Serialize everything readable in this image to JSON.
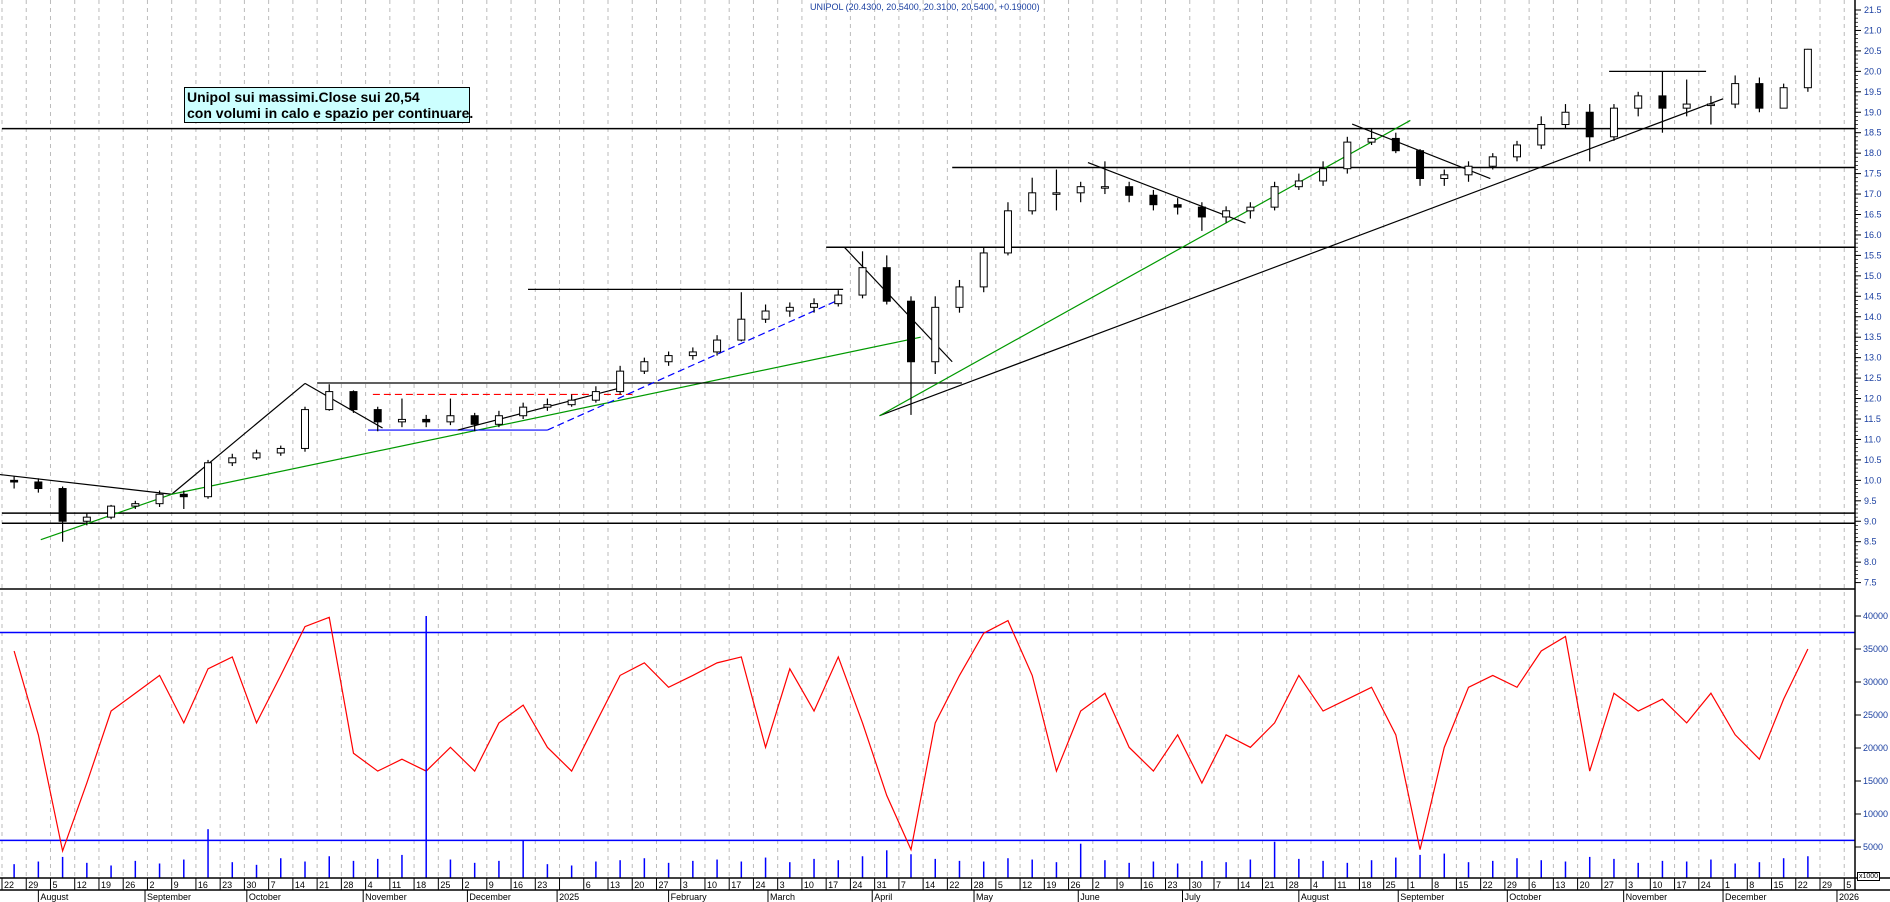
{
  "title": "UNIPOL (20.4300, 20.5400, 20.3100, 20.5400, +0.19000)",
  "annotation": {
    "line1": "Unipol sui massimi.Close sui 20,54",
    "line2": "con volumi in calo e spazio per continuare.",
    "background": "#ccffff"
  },
  "volume_unit_label": "x1000",
  "colors": {
    "candle": "#000000",
    "oscillator": "#ff0000",
    "volume": "#0000ff",
    "threshold": "#0000ff",
    "trend_green": "#009900",
    "trend_blue": "#0000ff",
    "trend_red": "#ff0000",
    "grid": "#bbbbbb"
  },
  "chart_data": [
    {
      "type": "candlestick",
      "name": "UNIPOL",
      "period": "weekly (approximated from daily chart)",
      "y_ticks": [
        "7.5",
        "8.0",
        "8.5",
        "9.0",
        "9.5",
        "10.0",
        "10.5",
        "11.0",
        "11.5",
        "12.0",
        "12.5",
        "13.0",
        "13.5",
        "14.0",
        "14.5",
        "15.0",
        "15.5",
        "16.0",
        "16.5",
        "17.0",
        "17.5",
        "18.0",
        "18.5",
        "19.0",
        "19.5",
        "20.0",
        "20.5",
        "21.0",
        "21.5"
      ],
      "ylim": [
        7.4,
        21.7
      ],
      "grid": "vertical dashed",
      "ohlc": [
        [
          10.0,
          10.1,
          9.8,
          9.96
        ],
        [
          9.96,
          10.05,
          9.7,
          9.8
        ],
        [
          9.8,
          9.85,
          8.5,
          9.0
        ],
        [
          9.0,
          9.2,
          8.9,
          9.1
        ],
        [
          9.1,
          9.4,
          9.05,
          9.37
        ],
        [
          9.37,
          9.5,
          9.3,
          9.43
        ],
        [
          9.43,
          9.75,
          9.35,
          9.66
        ],
        [
          9.66,
          9.75,
          9.3,
          9.6
        ],
        [
          9.6,
          10.5,
          9.55,
          10.43
        ],
        [
          10.43,
          10.65,
          10.35,
          10.55
        ],
        [
          10.55,
          10.75,
          10.5,
          10.67
        ],
        [
          10.67,
          10.85,
          10.6,
          10.78
        ],
        [
          10.78,
          11.8,
          10.7,
          11.73
        ],
        [
          11.73,
          12.35,
          11.7,
          12.17
        ],
        [
          12.17,
          12.2,
          11.65,
          11.73
        ],
        [
          11.73,
          11.8,
          11.2,
          11.43
        ],
        [
          11.43,
          12.0,
          11.3,
          11.49
        ],
        [
          11.49,
          11.6,
          11.3,
          11.43
        ],
        [
          11.43,
          12.0,
          11.35,
          11.58
        ],
        [
          11.58,
          11.65,
          11.2,
          11.37
        ],
        [
          11.37,
          11.7,
          11.3,
          11.58
        ],
        [
          11.58,
          11.9,
          11.5,
          11.79
        ],
        [
          11.79,
          12.0,
          11.7,
          11.85
        ],
        [
          11.85,
          12.1,
          11.8,
          11.96
        ],
        [
          11.96,
          12.3,
          11.9,
          12.17
        ],
        [
          12.17,
          12.8,
          12.1,
          12.67
        ],
        [
          12.67,
          13.0,
          12.6,
          12.9
        ],
        [
          12.9,
          13.15,
          12.8,
          13.05
        ],
        [
          13.05,
          13.25,
          12.95,
          13.14
        ],
        [
          13.14,
          13.55,
          13.05,
          13.43
        ],
        [
          13.43,
          14.6,
          13.4,
          13.94
        ],
        [
          13.94,
          14.3,
          13.85,
          14.14
        ],
        [
          14.14,
          14.35,
          14.0,
          14.23
        ],
        [
          14.23,
          14.45,
          14.1,
          14.32
        ],
        [
          14.32,
          14.65,
          14.25,
          14.53
        ],
        [
          14.53,
          15.6,
          14.45,
          15.2
        ],
        [
          15.2,
          15.5,
          14.3,
          14.38
        ],
        [
          14.38,
          14.5,
          11.6,
          12.9
        ],
        [
          12.9,
          14.5,
          12.6,
          14.23
        ],
        [
          14.23,
          14.9,
          14.1,
          14.73
        ],
        [
          14.73,
          15.7,
          14.6,
          15.56
        ],
        [
          15.56,
          16.8,
          15.5,
          16.59
        ],
        [
          16.59,
          17.4,
          16.5,
          17.03
        ],
        [
          17.03,
          17.6,
          16.6,
          17.03
        ],
        [
          17.03,
          17.3,
          16.8,
          17.18
        ],
        [
          17.18,
          17.8,
          17.0,
          17.18
        ],
        [
          17.18,
          17.3,
          16.8,
          16.97
        ],
        [
          16.97,
          17.1,
          16.6,
          16.74
        ],
        [
          16.74,
          16.9,
          16.5,
          16.68
        ],
        [
          16.68,
          16.8,
          16.1,
          16.44
        ],
        [
          16.44,
          16.7,
          16.3,
          16.59
        ],
        [
          16.59,
          16.8,
          16.4,
          16.68
        ],
        [
          16.68,
          17.3,
          16.6,
          17.18
        ],
        [
          17.18,
          17.5,
          17.1,
          17.32
        ],
        [
          17.32,
          17.8,
          17.2,
          17.62
        ],
        [
          17.62,
          18.4,
          17.5,
          18.27
        ],
        [
          18.27,
          18.6,
          18.2,
          18.36
        ],
        [
          18.36,
          18.5,
          18.0,
          18.06
        ],
        [
          18.06,
          18.1,
          17.2,
          17.38
        ],
        [
          17.38,
          17.6,
          17.2,
          17.47
        ],
        [
          17.47,
          17.8,
          17.3,
          17.68
        ],
        [
          17.68,
          18.0,
          17.6,
          17.91
        ],
        [
          17.91,
          18.3,
          17.8,
          18.2
        ],
        [
          18.2,
          18.9,
          18.1,
          18.7
        ],
        [
          18.7,
          19.2,
          18.6,
          19.0
        ],
        [
          19.0,
          19.2,
          17.8,
          18.4
        ],
        [
          18.4,
          19.2,
          18.3,
          19.1
        ],
        [
          19.1,
          19.5,
          18.9,
          19.4
        ],
        [
          19.4,
          20.0,
          18.5,
          19.1
        ],
        [
          19.1,
          19.8,
          18.9,
          19.2
        ],
        [
          19.2,
          19.4,
          18.7,
          19.2
        ],
        [
          19.2,
          19.9,
          19.1,
          19.7
        ],
        [
          19.7,
          19.85,
          19.0,
          19.1
        ],
        [
          19.1,
          19.7,
          19.1,
          19.6
        ],
        [
          19.6,
          20.55,
          19.5,
          20.54
        ]
      ],
      "horizontal_levels": [
        {
          "price": 18.6,
          "from_week": 0
        },
        {
          "price": 17.65,
          "from_week": 39.2
        },
        {
          "price": 15.7,
          "from_week": 34.0
        },
        {
          "price": 9.2,
          "from_week": 0
        },
        {
          "price": 8.95,
          "from_week": 0
        }
      ],
      "trendlines": [
        {
          "color": "#000000",
          "from": [
            -0.2,
            10.15
          ],
          "to": [
            7.0,
            9.66
          ]
        },
        {
          "color": "#009900",
          "from": [
            1.6,
            8.55
          ],
          "to": [
            7.0,
            9.66
          ]
        },
        {
          "color": "#000000",
          "from": [
            7.0,
            9.66
          ],
          "to": [
            12.5,
            12.37
          ]
        },
        {
          "color": "#009900",
          "from": [
            7.0,
            9.66
          ],
          "to": [
            37.9,
            13.5
          ]
        },
        {
          "color": "#000000",
          "from": [
            12.5,
            12.37
          ],
          "to": [
            15.7,
            11.28
          ]
        },
        {
          "color": "#000000",
          "from": [
            13.0,
            12.38
          ],
          "to": [
            39.6,
            12.38
          ]
        },
        {
          "color": "#ff0000",
          "dashed": true,
          "from": [
            15.3,
            12.1
          ],
          "to": [
            26.0,
            12.1
          ]
        },
        {
          "color": "#0000ff",
          "from": [
            15.1,
            11.23
          ],
          "to": [
            22.5,
            11.23
          ]
        },
        {
          "color": "#000000",
          "from": [
            18.8,
            11.23
          ],
          "to": [
            25.5,
            12.26
          ]
        },
        {
          "color": "#0000ff",
          "dashed": true,
          "from": [
            22.5,
            11.23
          ],
          "to": [
            34.4,
            14.38
          ]
        },
        {
          "color": "#000000",
          "from": [
            21.7,
            14.67
          ],
          "to": [
            34.7,
            14.67
          ]
        },
        {
          "color": "#000000",
          "from": [
            34.75,
            15.7
          ],
          "to": [
            39.2,
            12.9
          ]
        },
        {
          "color": "#000000",
          "from": [
            36.2,
            11.58
          ],
          "to": [
            71.0,
            19.33
          ]
        },
        {
          "color": "#009900",
          "from": [
            36.2,
            11.58
          ],
          "to": [
            58.1,
            18.8
          ]
        },
        {
          "color": "#000000",
          "from": [
            44.8,
            17.77
          ],
          "to": [
            51.3,
            16.29
          ]
        },
        {
          "color": "#000000",
          "from": [
            55.7,
            18.71
          ],
          "to": [
            61.4,
            17.38
          ]
        },
        {
          "color": "#000000",
          "from": [
            66.3,
            20.0
          ],
          "to": [
            70.3,
            20.0
          ]
        }
      ]
    },
    {
      "type": "line",
      "y_ticks": [
        "5000",
        "10000",
        "15000",
        "20000",
        "25000",
        "30000",
        "35000",
        "40000"
      ],
      "ylim": [
        0,
        43500
      ],
      "thresholds": [
        37500,
        6000
      ],
      "values": [
        34700,
        22000,
        4400,
        14700,
        25600,
        28300,
        31000,
        23800,
        32000,
        33800,
        23800,
        31000,
        38400,
        39800,
        19200,
        16500,
        18300,
        16500,
        20100,
        16500,
        23800,
        26500,
        20100,
        16500,
        23800,
        31000,
        32900,
        29200,
        31000,
        32900,
        33800,
        20100,
        32000,
        25600,
        33800,
        23800,
        12800,
        4600,
        23800,
        31000,
        37400,
        39300,
        31000,
        16500,
        25600,
        28300,
        20100,
        16500,
        22000,
        14700,
        22000,
        20100,
        23800,
        31000,
        25600,
        27400,
        29200,
        22000,
        4600,
        20100,
        29200,
        31000,
        29200,
        34700,
        36900,
        16500,
        28300,
        25600,
        27400,
        23800,
        28300,
        22000,
        18300,
        27400,
        35000
      ]
    },
    {
      "type": "bar",
      "unit": "x1000",
      "values": [
        2400,
        2800,
        3500,
        2600,
        2200,
        2900,
        2500,
        3100,
        7700,
        2700,
        2300,
        3300,
        2800,
        3600,
        2900,
        3200,
        3800,
        40000,
        3100,
        2600,
        2900,
        6000,
        2400,
        2200,
        2800,
        3000,
        3300,
        2600,
        2900,
        3100,
        2800,
        3400,
        2700,
        3200,
        3000,
        3600,
        4500,
        3900,
        3200,
        2900,
        2800,
        3300,
        3100,
        2700,
        5500,
        3000,
        2600,
        2800,
        2500,
        2900,
        2700,
        3100,
        5800,
        3200,
        2900,
        2600,
        3000,
        3400,
        3800,
        4000,
        2700,
        2900,
        3300,
        3000,
        2800,
        3500,
        3200,
        2600,
        2900,
        2800,
        3100,
        2500,
        2700,
        3300,
        3600
      ]
    }
  ],
  "x_axis": {
    "week_labels": [
      "22",
      "29",
      "5",
      "12",
      "19",
      "26",
      "2",
      "9",
      "16",
      "23",
      "30",
      "7",
      "14",
      "21",
      "28",
      "4",
      "11",
      "18",
      "25",
      "2",
      "9",
      "16",
      "23",
      "",
      "6",
      "13",
      "20",
      "27",
      "3",
      "10",
      "17",
      "24",
      "3",
      "10",
      "17",
      "24",
      "31",
      "7",
      "14",
      "22",
      "28",
      "5",
      "12",
      "19",
      "26",
      "2",
      "9",
      "16",
      "23",
      "30",
      "7",
      "14",
      "21",
      "28",
      "4",
      "11",
      "18",
      "25",
      "1",
      "8",
      "15",
      "22",
      "29",
      "6",
      "13",
      "20",
      "27",
      "3",
      "10",
      "17",
      "24",
      "1",
      "8",
      "15",
      "22",
      "29",
      "5"
    ],
    "months": [
      {
        "label": "August",
        "week": 1.5
      },
      {
        "label": "September",
        "week": 5.9
      },
      {
        "label": "October",
        "week": 10.1
      },
      {
        "label": "November",
        "week": 14.9
      },
      {
        "label": "December",
        "week": 19.2
      },
      {
        "label": "2025",
        "week": 22.9
      },
      {
        "label": "February",
        "week": 27.5
      },
      {
        "label": "March",
        "week": 31.6
      },
      {
        "label": "April",
        "week": 35.9
      },
      {
        "label": "May",
        "week": 40.1
      },
      {
        "label": "June",
        "week": 44.4
      },
      {
        "label": "July",
        "week": 48.7
      },
      {
        "label": "August",
        "week": 53.5
      },
      {
        "label": "September",
        "week": 57.6
      },
      {
        "label": "October",
        "week": 62.1
      },
      {
        "label": "November",
        "week": 66.9
      },
      {
        "label": "December",
        "week": 71.0
      },
      {
        "label": "2026",
        "week": 75.7
      }
    ]
  }
}
